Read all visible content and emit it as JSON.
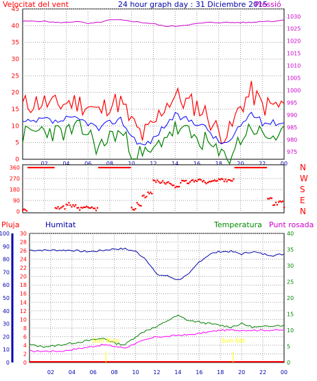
{
  "header": {
    "left_title": "Velocitat del vent",
    "center_title": "24 hour graph day : 31 Diciembre 2015",
    "right_title": "Pressió"
  },
  "bottom_header": {
    "pluja": "Pluja",
    "humitat": "Humitat",
    "temperatura": "Temperatura",
    "punt_rosada": "Punt rosada"
  },
  "annotations": {
    "sun_rise": "Sun Rise",
    "sun_set": "Sun Set"
  },
  "colors": {
    "wind_speed": "#ff0000",
    "wind_avg": "#0000ff",
    "wind_gust_low": "#008000",
    "pressure": "#cc00cc",
    "direction": "#ff0000",
    "humidity": "#0000aa",
    "temperature": "#008000",
    "dew_point": "#ff00ff",
    "rain": "#ff0000",
    "sun": "#ffff00"
  },
  "chart_data": [
    {
      "type": "line",
      "title": "Velocitat del vent",
      "x_ticks": [
        "02",
        "04",
        "06",
        "08",
        "10",
        "12",
        "14",
        "16",
        "18",
        "20",
        "22",
        "00"
      ],
      "y_left_ticks": [
        0,
        5,
        10,
        15,
        20,
        25,
        30,
        35,
        40,
        45
      ],
      "y_right_ticks": [
        975,
        980,
        985,
        990,
        995,
        1000,
        1005,
        1010,
        1015,
        1020,
        1025,
        1030
      ],
      "ylim_left": [
        0,
        45
      ],
      "ylim_right": [
        972,
        1033
      ],
      "series": [
        {
          "x": [
            0,
            1,
            2,
            3,
            4,
            5,
            6,
            7,
            8,
            9,
            10,
            11,
            12,
            13,
            14,
            15,
            16,
            17,
            18,
            19,
            20,
            21,
            22,
            23,
            24
          ],
          "values": [
            16,
            17,
            17,
            16,
            17,
            17,
            16,
            14,
            17,
            17,
            11,
            7,
            10,
            16,
            19,
            17,
            16,
            13,
            8,
            8,
            16,
            20,
            16,
            16,
            16
          ]
        },
        {
          "x": [
            0,
            1,
            2,
            3,
            4,
            5,
            6,
            7,
            8,
            9,
            10,
            11,
            12,
            13,
            14,
            15,
            16,
            17,
            18,
            19,
            20,
            21,
            22,
            23,
            24
          ],
          "values": [
            11,
            11,
            12,
            11,
            12,
            12,
            11,
            9,
            11,
            12,
            7,
            4,
            6,
            10,
            13,
            12,
            11,
            9,
            5,
            5,
            10,
            14,
            11,
            11,
            11
          ]
        },
        {
          "x": [
            0,
            1,
            2,
            3,
            4,
            5,
            6,
            7,
            8,
            9,
            10,
            11,
            12,
            13,
            14,
            15,
            16,
            17,
            18,
            19,
            20,
            21,
            22,
            23,
            24
          ],
          "values": [
            7,
            8,
            9,
            8,
            8,
            9,
            8,
            3,
            7,
            8,
            3,
            1,
            2,
            7,
            9,
            8,
            6,
            5,
            1,
            1,
            6,
            10,
            7,
            7,
            7
          ]
        },
        {
          "x": [
            0,
            1,
            2,
            3,
            4,
            5,
            6,
            7,
            8,
            9,
            10,
            11,
            12,
            13,
            14,
            15,
            16,
            17,
            18,
            19,
            20,
            21,
            22,
            23,
            24
          ],
          "values": [
            1028,
            1028,
            1028,
            1027.5,
            1027.5,
            1028,
            1027,
            1027.5,
            1028.5,
            1028.5,
            1028,
            1027.5,
            1027,
            1026,
            1026,
            1026.5,
            1027,
            1027.5,
            1027.5,
            1027.5,
            1027.5,
            1027.5,
            1028,
            1028,
            1028.5
          ]
        }
      ]
    },
    {
      "type": "scatter",
      "title": "Direction",
      "right_labels": [
        "N",
        "W",
        "S",
        "E",
        "N"
      ],
      "y_left_ticks": [
        0,
        90,
        180,
        270,
        360
      ],
      "ylim": [
        0,
        360
      ],
      "x": [
        0,
        0.5,
        1,
        1.5,
        2,
        2.5,
        3,
        3.5,
        4,
        4.5,
        5,
        5.5,
        6,
        6.5,
        7,
        7.5,
        8,
        8.5,
        9,
        9.5,
        10,
        10.5,
        11,
        11.5,
        12,
        12.5,
        13,
        13.5,
        14,
        14.5,
        15,
        15.5,
        16,
        16.5,
        17,
        17.5,
        18,
        18.5,
        19,
        19.5,
        20,
        20.5,
        21,
        21.5,
        22,
        22.5,
        23,
        23.5,
        24
      ],
      "values": [
        20,
        360,
        360,
        360,
        360,
        360,
        30,
        30,
        60,
        40,
        20,
        30,
        30,
        20,
        360,
        360,
        360,
        360,
        360,
        360,
        20,
        60,
        120,
        160,
        250,
        240,
        230,
        220,
        210,
        240,
        240,
        250,
        260,
        240,
        250,
        250,
        260,
        260,
        260,
        360,
        360,
        360,
        360,
        360,
        360,
        100,
        60,
        80,
        40
      ]
    },
    {
      "type": "line",
      "title": "Humitat / Temperatura / Punt rosada",
      "legend": [
        "Humitat",
        "Temperatura",
        "Punt rosada"
      ],
      "x_ticks": [
        "02",
        "04",
        "06",
        "08",
        "10",
        "12",
        "14",
        "16",
        "18",
        "20",
        "22",
        "00"
      ],
      "y_hum_ticks": [
        0,
        10,
        20,
        30,
        40,
        50,
        60,
        70,
        80,
        90,
        100
      ],
      "y_left2_ticks": [
        0,
        2,
        4,
        6,
        8,
        10,
        12,
        14,
        16,
        18,
        20,
        22,
        24,
        26,
        28,
        30
      ],
      "y_right_ticks": [
        0,
        5,
        10,
        15,
        20,
        25,
        30,
        35,
        40
      ],
      "ylim_hum": [
        0,
        100
      ],
      "ylim_temp": [
        0,
        40
      ],
      "series": [
        {
          "x": [
            0,
            1,
            2,
            3,
            4,
            5,
            6,
            7,
            8,
            9,
            10,
            11,
            12,
            13,
            14,
            15,
            16,
            17,
            18,
            19,
            20,
            21,
            22,
            23,
            24
          ],
          "values": [
            87,
            87,
            87,
            87,
            87,
            86,
            86,
            87,
            88,
            88,
            86,
            80,
            68,
            67,
            64,
            68,
            78,
            84,
            86,
            86,
            84,
            86,
            84,
            83,
            84
          ]
        },
        {
          "x": [
            0,
            1,
            2,
            3,
            4,
            5,
            6,
            7,
            8,
            9,
            10,
            11,
            12,
            13,
            14,
            15,
            16,
            17,
            18,
            19,
            20,
            21,
            22,
            23,
            24
          ],
          "values": [
            5.5,
            5,
            5,
            5.5,
            6,
            6.5,
            7,
            7.5,
            6,
            5.5,
            8,
            10,
            11,
            13,
            14.5,
            13,
            12.5,
            12,
            11.5,
            11,
            12,
            11,
            11,
            11.5,
            11.5
          ]
        },
        {
          "x": [
            0,
            1,
            2,
            3,
            4,
            5,
            6,
            7,
            8,
            9,
            10,
            11,
            12,
            13,
            14,
            15,
            16,
            17,
            18,
            19,
            20,
            21,
            22,
            23,
            24
          ],
          "values": [
            3.5,
            3.5,
            3.5,
            3.5,
            4,
            4.5,
            5,
            5.5,
            5,
            4.5,
            6,
            7,
            8,
            8,
            8.5,
            8.5,
            9,
            9.5,
            10,
            10,
            10,
            10,
            10,
            10,
            10
          ]
        },
        {
          "x": [
            7.2,
            19.2
          ],
          "values": [
            0,
            0
          ]
        }
      ]
    }
  ]
}
